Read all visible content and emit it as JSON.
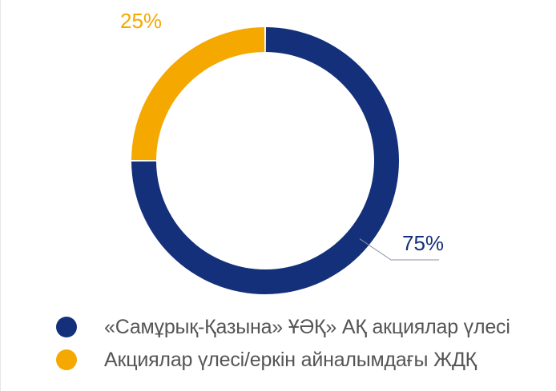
{
  "chart_data": {
    "type": "pie",
    "donut": true,
    "categories": [
      "«Самұрық-Қазына» ҰӘҚ» АҚ акциялар үлесі",
      "Акциялар үлесі/еркін айналымдағы ЖДҚ"
    ],
    "values": [
      75,
      25
    ],
    "value_labels": [
      "75%",
      "25%"
    ],
    "colors": [
      "#15307a",
      "#f5a800"
    ],
    "legend_position": "bottom-left"
  }
}
